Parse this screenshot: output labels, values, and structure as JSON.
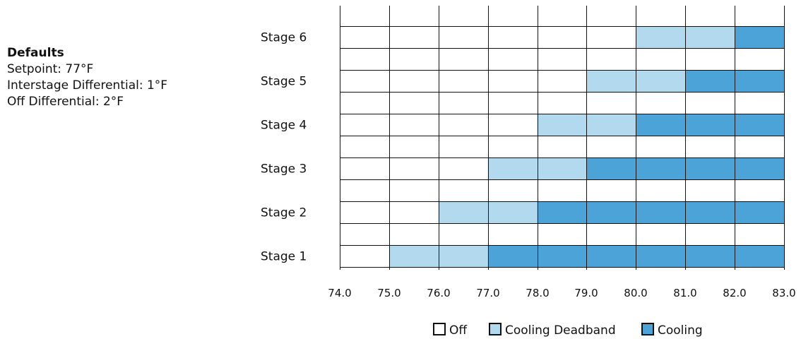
{
  "defaults": {
    "title": "Defaults",
    "lines": [
      "Setpoint: 77°F",
      "Interstage Differential: 1°F",
      "Off Differential: 2°F"
    ]
  },
  "chart_data": {
    "type": "bar",
    "orientation": "horizontal-stacked",
    "title": "",
    "xlabel": "",
    "ylabel": "",
    "xlim": [
      74.0,
      83.0
    ],
    "x_ticks": [
      "74.0",
      "75.0",
      "76.0",
      "77.0",
      "78.0",
      "79.0",
      "80.0",
      "81.0",
      "82.0",
      "83.0"
    ],
    "grid": true,
    "legend_position": "bottom-center",
    "categories": [
      "Stage 1",
      "Stage 2",
      "Stage 3",
      "Stage 4",
      "Stage 5",
      "Stage 6"
    ],
    "series": [
      {
        "name": "Off",
        "color": "#ffffff",
        "ranges": [
          [
            74.0,
            75.0
          ],
          [
            74.0,
            76.0
          ],
          [
            74.0,
            77.0
          ],
          [
            74.0,
            78.0
          ],
          [
            74.0,
            79.0
          ],
          [
            74.0,
            80.0
          ]
        ]
      },
      {
        "name": "Cooling Deadband",
        "color": "#b3d9ef",
        "ranges": [
          [
            75.0,
            77.0
          ],
          [
            76.0,
            78.0
          ],
          [
            77.0,
            79.0
          ],
          [
            78.0,
            80.0
          ],
          [
            79.0,
            81.0
          ],
          [
            80.0,
            82.0
          ]
        ]
      },
      {
        "name": "Cooling",
        "color": "#4ba3d8",
        "ranges": [
          [
            77.0,
            83.0
          ],
          [
            78.0,
            83.0
          ],
          [
            79.0,
            83.0
          ],
          [
            80.0,
            83.0
          ],
          [
            81.0,
            83.0
          ],
          [
            82.0,
            83.0
          ]
        ]
      }
    ]
  }
}
